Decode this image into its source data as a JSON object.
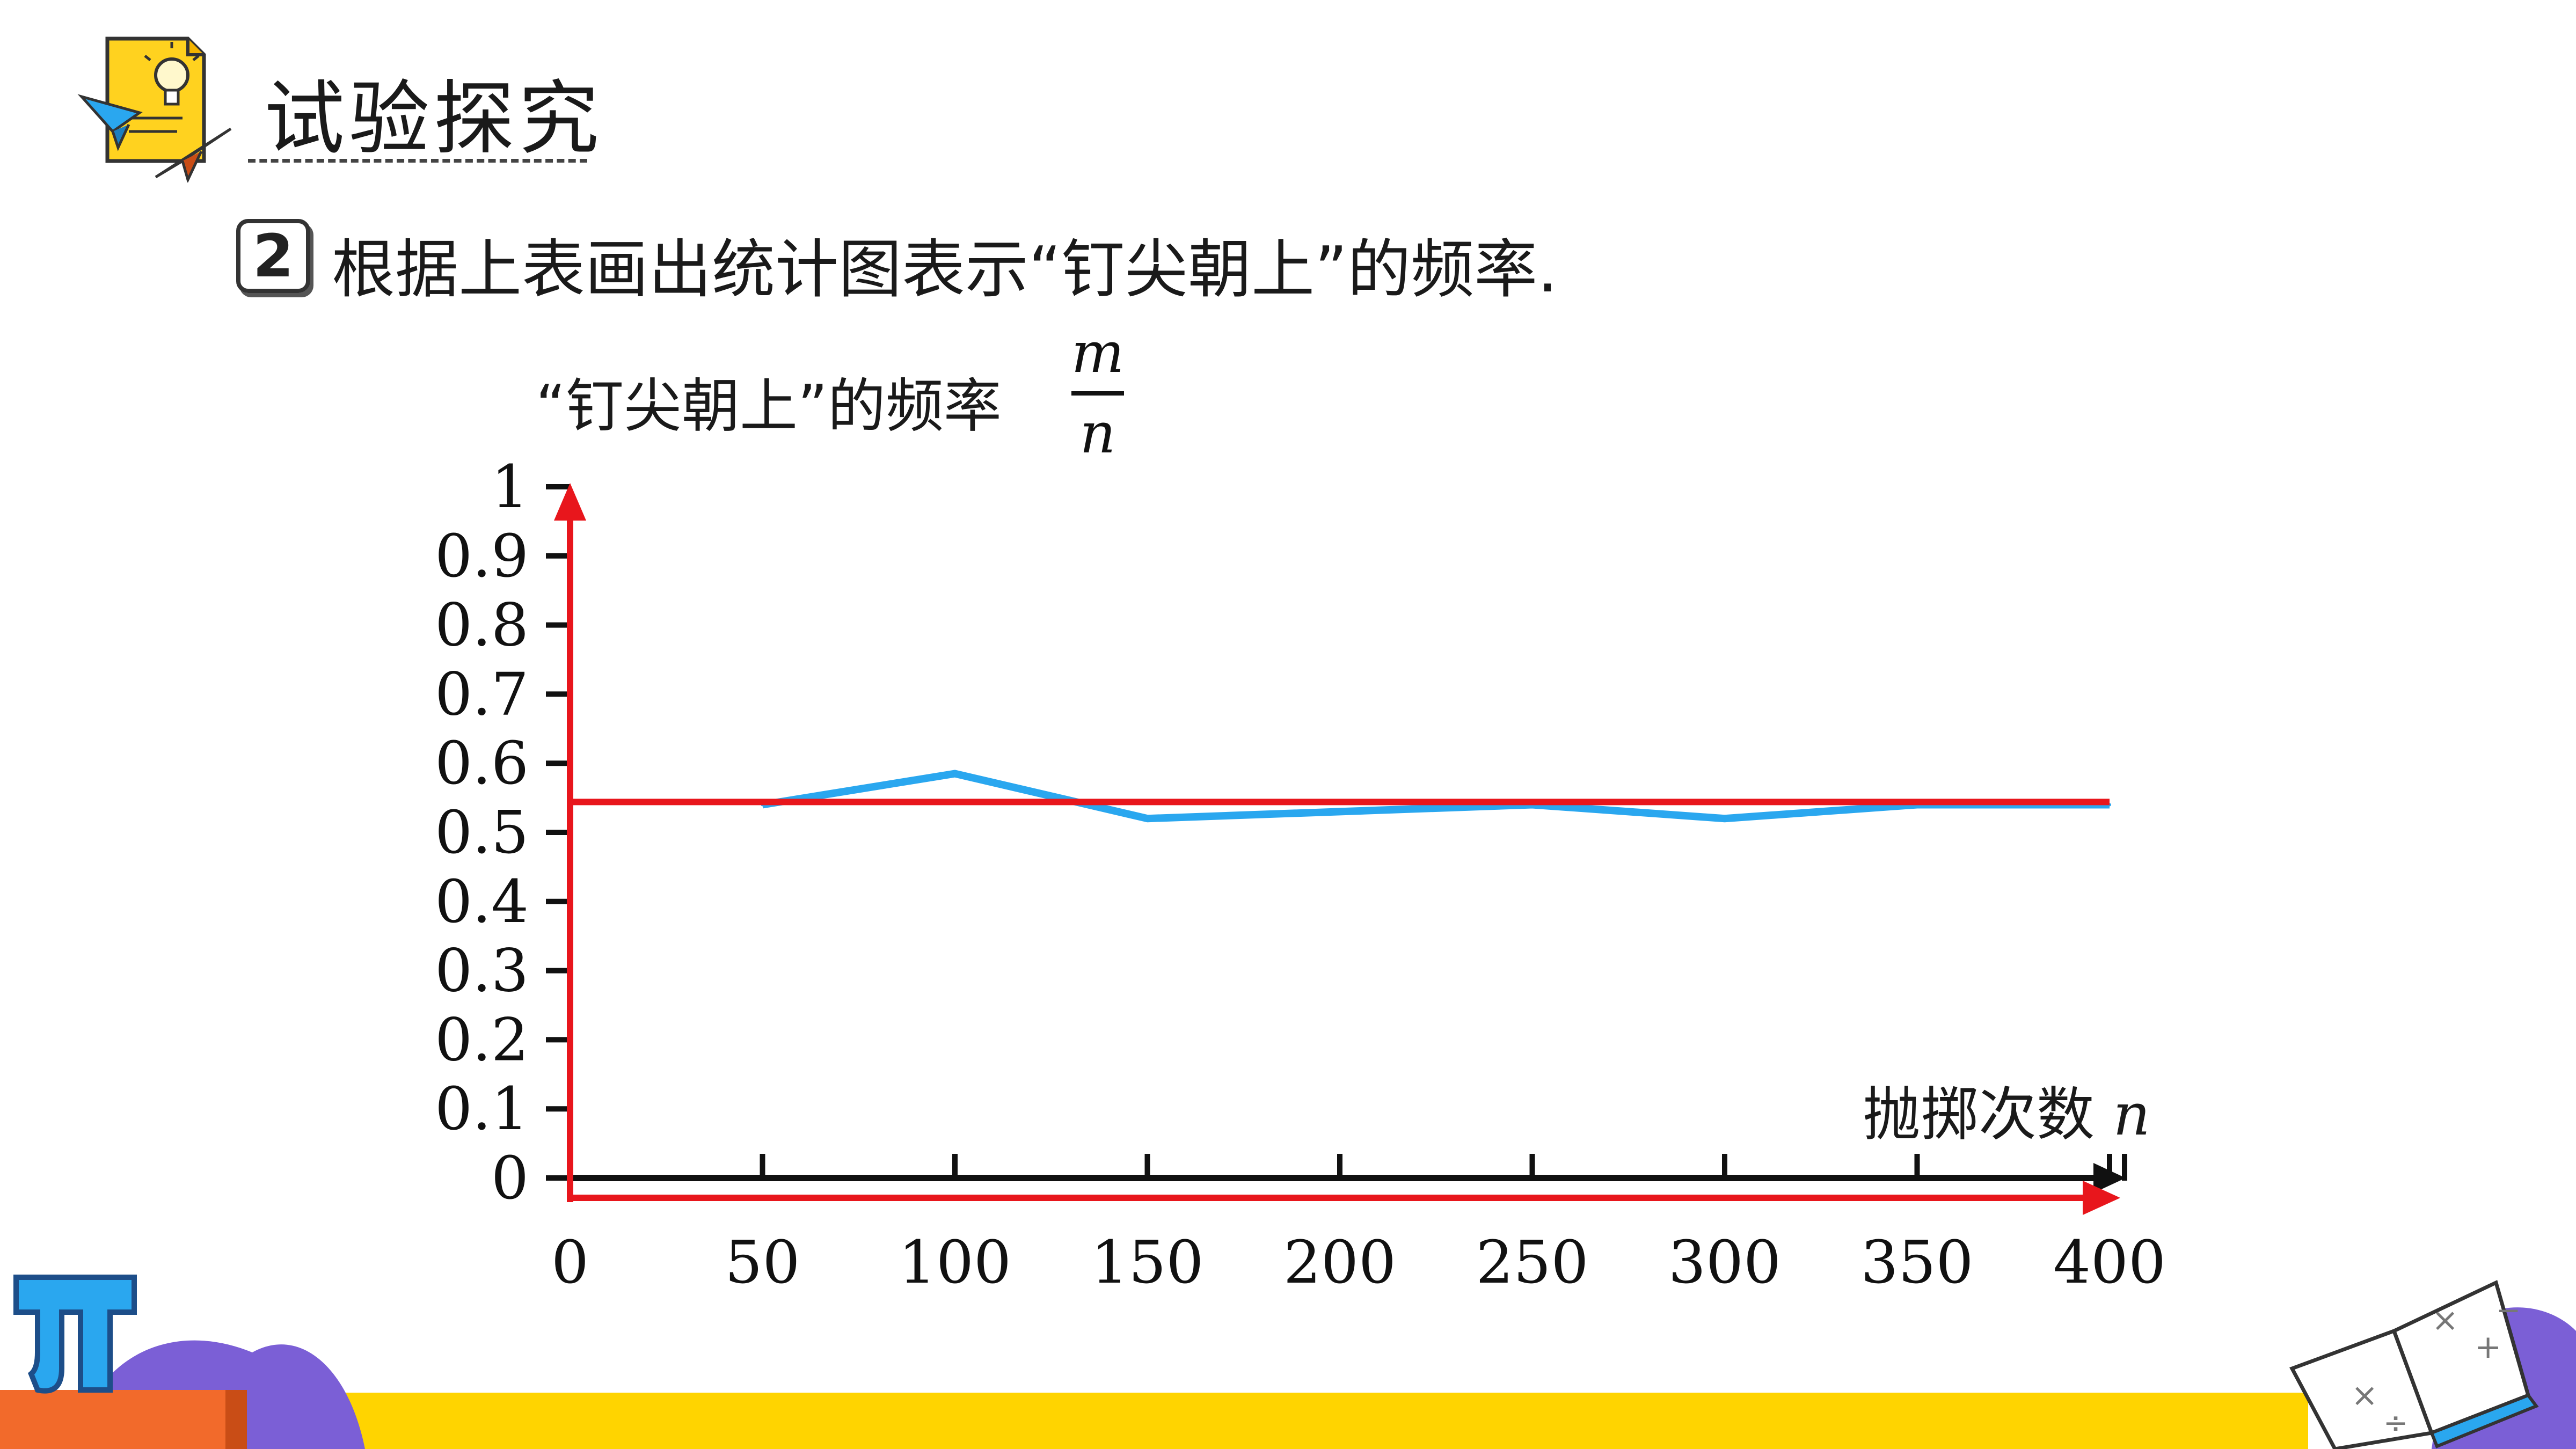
{
  "header": {
    "title": "试验探究"
  },
  "step": {
    "number": "2",
    "text": "根据上表画出统计图表示“钉尖朝上”的频率."
  },
  "colors": {
    "red_axis": "#e8161c",
    "blue_line": "#2aa7ef",
    "black_axis": "#111111",
    "yellow_band": "#ffd400",
    "purple_deco": "#7b5fd6"
  },
  "chart_data": {
    "type": "line",
    "ylabel": "“钉尖朝上”的频率",
    "ylabel_fraction": {
      "numerator": "m",
      "denominator": "n"
    },
    "xlabel": "抛掷次数",
    "xlabel_var": "n",
    "xlim": [
      0,
      400
    ],
    "ylim": [
      0,
      1
    ],
    "x_ticks": [
      "0",
      "50",
      "100",
      "150",
      "200",
      "250",
      "300",
      "350",
      "400"
    ],
    "y_ticks": [
      "0",
      "0.1",
      "0.2",
      "0.3",
      "0.4",
      "0.5",
      "0.6",
      "0.7",
      "0.8",
      "0.9",
      "1"
    ],
    "series": [
      {
        "color": "#2aa7ef",
        "x": [
          50,
          100,
          150,
          200,
          250,
          300,
          350,
          400
        ],
        "y": [
          0.54,
          0.585,
          0.52,
          0.53,
          0.54,
          0.52,
          0.54,
          0.54
        ]
      }
    ],
    "reference_line": {
      "y": 0.544,
      "color": "#e8161c"
    },
    "grid": false,
    "legend": "none"
  },
  "icons": {
    "header_icon": "lightbulb-paper-planes-icon",
    "pi_decoration": "pi-icon",
    "book_decoration": "open-book-math-icon"
  }
}
